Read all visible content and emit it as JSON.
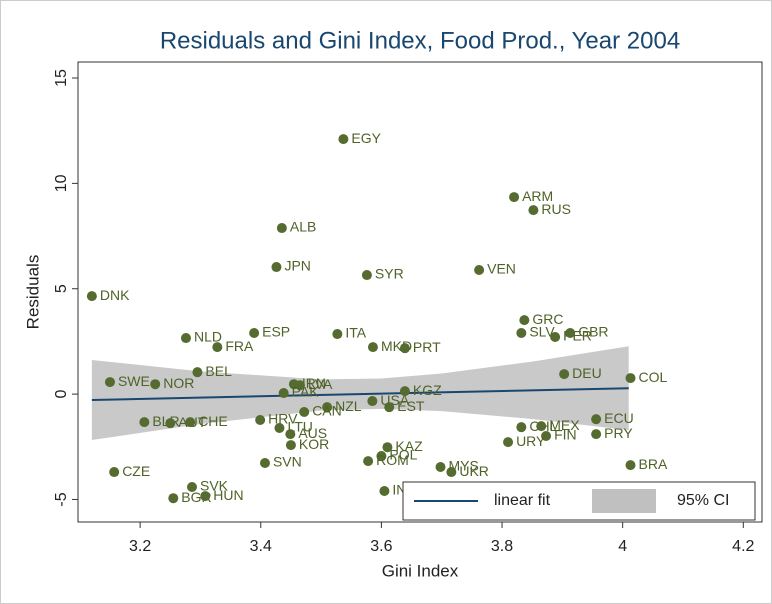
{
  "chart_data": {
    "type": "scatter",
    "title": "Residuals and Gini Index, Food Prod., Year 2004",
    "x_label": "Gini Index",
    "y_label": "Residuals",
    "color": "#556b2f",
    "labels": [
      "EGY",
      "ARM",
      "RUS",
      "ALB",
      "JPN",
      "SYR",
      "VEN",
      "DNK",
      "GRC",
      "SLV",
      "PER",
      "GBR",
      "ESP",
      "ITA",
      "NLD",
      "FRA",
      "MKD",
      "PRT",
      "BEL",
      "DEU",
      "COL",
      "SWE",
      "NOR",
      "IRN",
      "LVA",
      "PAK",
      "KGZ",
      "USA",
      "EST",
      "NZL",
      "CAN",
      "ECU",
      "CHL",
      "MEX",
      "FIN",
      "PRY",
      "URY",
      "HRV",
      "LTU",
      "AUS",
      "KOR",
      "BLR",
      "AUT",
      "CHE",
      "KAZ",
      "POL",
      "ROM",
      "SVN",
      "CZE",
      "MYS",
      "UKR",
      "SVK",
      "BGR",
      "HUN",
      "IND",
      "BRA"
    ],
    "x": [
      3.537,
      3.82,
      3.852,
      3.435,
      3.426,
      3.576,
      3.762,
      3.12,
      3.837,
      3.832,
      3.888,
      3.913,
      3.389,
      3.527,
      3.276,
      3.328,
      3.586,
      3.639,
      3.295,
      3.903,
      4.013,
      3.15,
      3.225,
      3.455,
      3.465,
      3.438,
      3.639,
      3.585,
      3.613,
      3.51,
      3.472,
      3.956,
      3.832,
      3.865,
      3.873,
      3.956,
      3.81,
      3.399,
      3.431,
      3.449,
      3.45,
      3.207,
      3.25,
      3.283,
      3.61,
      3.6,
      3.578,
      3.407,
      3.157,
      3.698,
      3.716,
      3.286,
      3.255,
      3.308,
      3.605,
      4.013
    ],
    "values": [
      12.1,
      9.35,
      8.73,
      7.88,
      6.03,
      5.65,
      5.89,
      4.65,
      3.51,
      2.9,
      2.71,
      2.9,
      2.9,
      2.85,
      2.66,
      2.23,
      2.23,
      2.18,
      1.04,
      0.95,
      0.76,
      0.57,
      0.47,
      0.47,
      0.42,
      0.05,
      0.14,
      -0.33,
      -0.62,
      -0.62,
      -0.85,
      -1.19,
      -1.57,
      -1.52,
      -1.99,
      -1.9,
      -2.28,
      -1.23,
      -1.61,
      -1.9,
      -2.42,
      -1.33,
      -1.38,
      -1.33,
      -2.52,
      -2.94,
      -3.18,
      -3.27,
      -3.7,
      -3.46,
      -3.7,
      -4.41,
      -4.94,
      -4.84,
      -4.6,
      -3.37
    ],
    "fit": {
      "name": "linear fit",
      "color": "#1a476f",
      "x": [
        3.12,
        4.01
      ],
      "values": [
        -0.28,
        0.28
      ]
    },
    "ci": {
      "name": "95% CI",
      "color": "#c0c0c0",
      "x": [
        3.12,
        3.3,
        3.5,
        3.6,
        3.7,
        3.85,
        4.01
      ],
      "upper": [
        1.62,
        1.08,
        0.7,
        0.74,
        0.98,
        1.54,
        2.27
      ],
      "lower": [
        -2.18,
        -1.42,
        -0.78,
        -0.7,
        -0.81,
        -1.18,
        -1.71
      ]
    },
    "xlim": [
      3.097,
      4.231
    ],
    "ylim": [
      -6.07,
      15.76
    ],
    "xticks": [
      3.2,
      3.4,
      3.6,
      3.8,
      4,
      4.2
    ],
    "yticks": [
      -5,
      0,
      5,
      10,
      15
    ],
    "grid": false
  }
}
